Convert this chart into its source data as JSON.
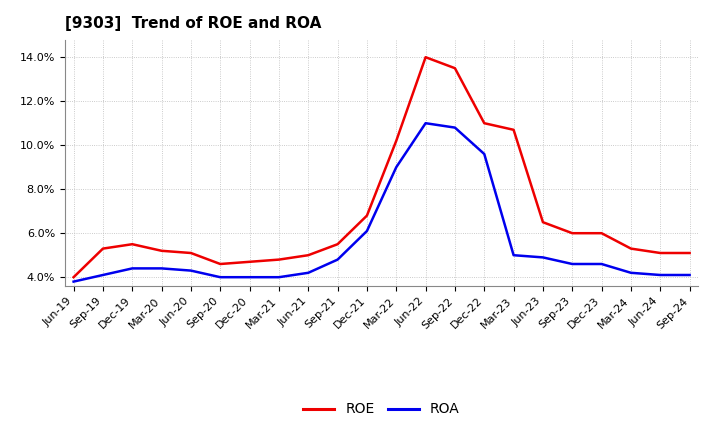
{
  "title": "[9303]  Trend of ROE and ROA",
  "ylim": [
    0.036,
    0.148
  ],
  "yticks": [
    0.04,
    0.06,
    0.08,
    0.1,
    0.12,
    0.14
  ],
  "ytick_labels": [
    "4.0%",
    "6.0%",
    "8.0%",
    "10.0%",
    "12.0%",
    "14.0%"
  ],
  "x_labels": [
    "Jun-19",
    "Sep-19",
    "Dec-19",
    "Mar-20",
    "Jun-20",
    "Sep-20",
    "Dec-20",
    "Mar-21",
    "Jun-21",
    "Sep-21",
    "Dec-21",
    "Mar-22",
    "Jun-22",
    "Sep-22",
    "Dec-22",
    "Mar-23",
    "Jun-23",
    "Sep-23",
    "Dec-23",
    "Mar-24",
    "Jun-24",
    "Sep-24"
  ],
  "roe": [
    0.04,
    0.053,
    0.055,
    0.052,
    0.051,
    0.046,
    0.047,
    0.048,
    0.05,
    0.055,
    0.068,
    0.102,
    0.14,
    0.135,
    0.11,
    0.107,
    0.065,
    0.06,
    0.06,
    0.053,
    0.051,
    0.051
  ],
  "roa": [
    0.038,
    0.041,
    0.044,
    0.044,
    0.043,
    0.04,
    0.04,
    0.04,
    0.042,
    0.048,
    0.061,
    0.09,
    0.11,
    0.108,
    0.096,
    0.05,
    0.049,
    0.046,
    0.046,
    0.042,
    0.041,
    0.041
  ],
  "roe_color": "#EE0000",
  "roa_color": "#0000EE",
  "background_color": "#FFFFFF",
  "grid_color": "#BBBBBB",
  "title_fontsize": 11,
  "legend_fontsize": 10,
  "tick_fontsize": 8,
  "linewidth": 1.8
}
